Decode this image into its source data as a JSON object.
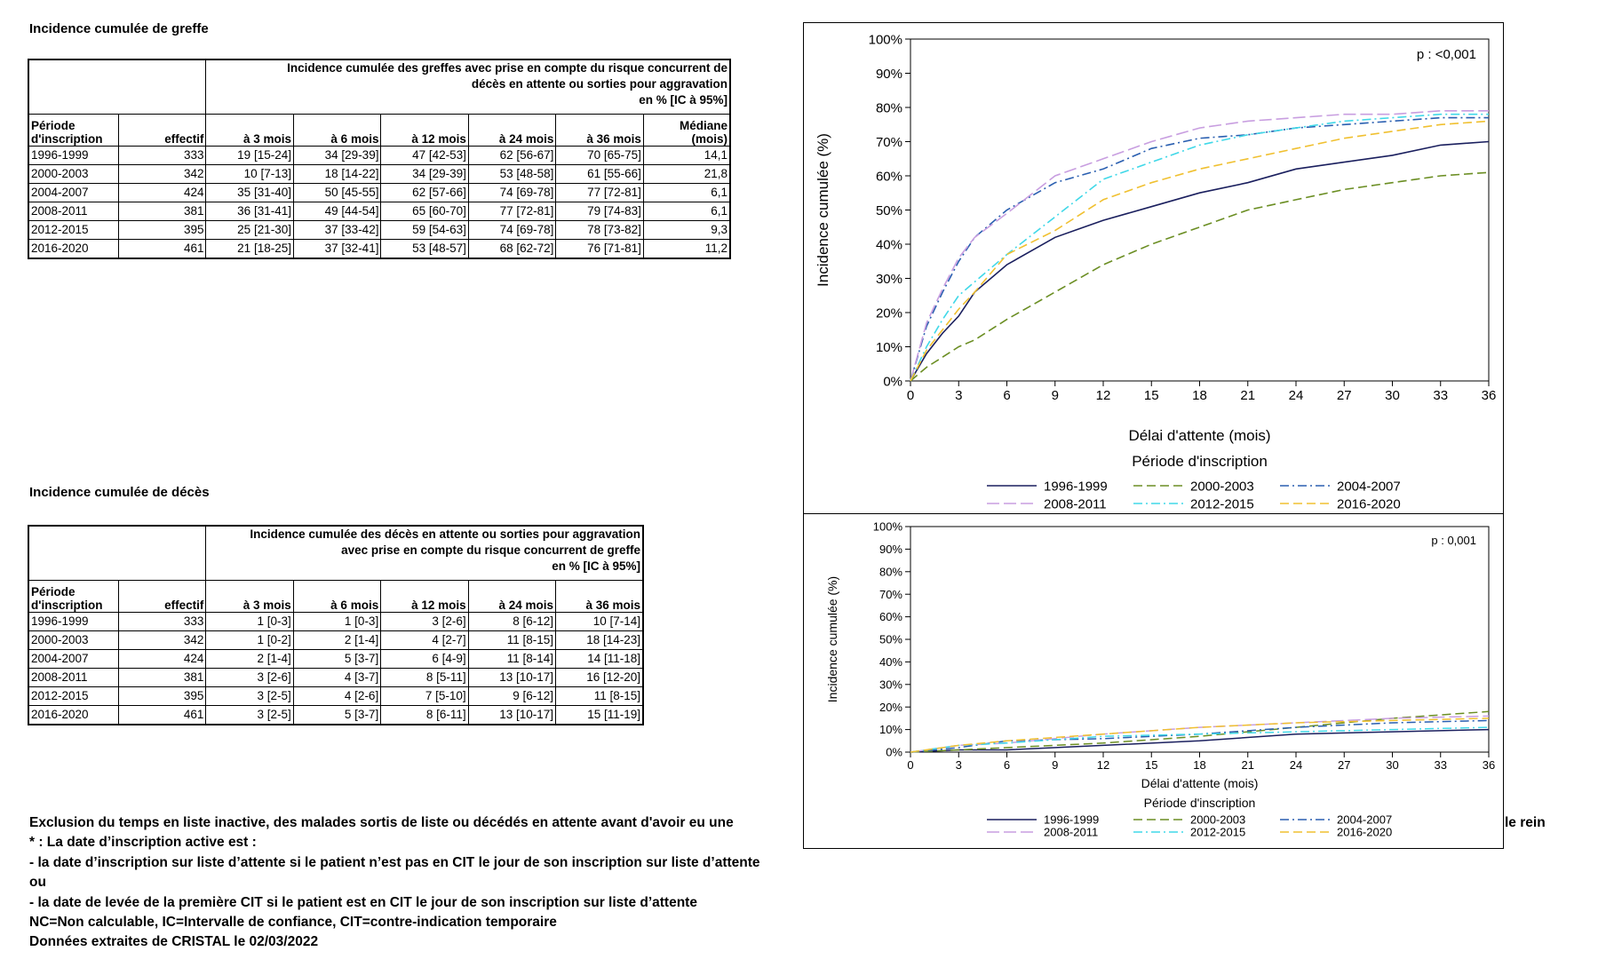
{
  "graft": {
    "heading": "Incidence cumulée de greffe",
    "caption_lines": [
      "Incidence cumulée des greffes avec prise en compte du risque concurrent de",
      "décès en attente ou sorties pour aggravation",
      "en % [IC à 95%]"
    ],
    "col_period": [
      "Période",
      "d'inscription"
    ],
    "col_n": "effectif",
    "col_times": [
      "à 3 mois",
      "à 6 mois",
      "à 12 mois",
      "à 24 mois",
      "à 36 mois"
    ],
    "col_median": [
      "Médiane",
      "(mois)"
    ],
    "rows": [
      {
        "period": "1996-1999",
        "n": "333",
        "vals": [
          "19 [15-24]",
          "34 [29-39]",
          "47 [42-53]",
          "62 [56-67]",
          "70 [65-75]"
        ],
        "median": "14,1"
      },
      {
        "period": "2000-2003",
        "n": "342",
        "vals": [
          "10 [7-13]",
          "18 [14-22]",
          "34 [29-39]",
          "53 [48-58]",
          "61 [55-66]"
        ],
        "median": "21,8"
      },
      {
        "period": "2004-2007",
        "n": "424",
        "vals": [
          "35 [31-40]",
          "50 [45-55]",
          "62 [57-66]",
          "74 [69-78]",
          "77 [72-81]"
        ],
        "median": "6,1"
      },
      {
        "period": "2008-2011",
        "n": "381",
        "vals": [
          "36 [31-41]",
          "49 [44-54]",
          "65 [60-70]",
          "77 [72-81]",
          "79 [74-83]"
        ],
        "median": "6,1"
      },
      {
        "period": "2012-2015",
        "n": "395",
        "vals": [
          "25 [21-30]",
          "37 [33-42]",
          "59 [54-63]",
          "74 [69-78]",
          "78 [73-82]"
        ],
        "median": "9,3"
      },
      {
        "period": "2016-2020",
        "n": "461",
        "vals": [
          "21 [18-25]",
          "37 [32-41]",
          "53 [48-57]",
          "68 [62-72]",
          "76 [71-81]"
        ],
        "median": "11,2"
      }
    ]
  },
  "death": {
    "heading": "Incidence cumulée de décès",
    "caption_lines": [
      "Incidence cumulée des décès en attente ou sorties pour aggravation",
      "avec prise en compte du risque concurrent de greffe",
      "en % [IC à 95%]"
    ],
    "col_period": [
      "Période",
      "d'inscription"
    ],
    "col_n": "effectif",
    "col_times": [
      "à 3 mois",
      "à 6 mois",
      "à 12 mois",
      "à 24 mois",
      "à 36 mois"
    ],
    "rows": [
      {
        "period": "1996-1999",
        "n": "333",
        "vals": [
          "1 [0-3]",
          "1 [0-3]",
          "3 [2-6]",
          "8 [6-12]",
          "10 [7-14]"
        ]
      },
      {
        "period": "2000-2003",
        "n": "342",
        "vals": [
          "1 [0-2]",
          "2 [1-4]",
          "4 [2-7]",
          "11 [8-15]",
          "18 [14-23]"
        ]
      },
      {
        "period": "2004-2007",
        "n": "424",
        "vals": [
          "2 [1-4]",
          "5 [3-7]",
          "6 [4-9]",
          "11 [8-14]",
          "14 [11-18]"
        ]
      },
      {
        "period": "2008-2011",
        "n": "381",
        "vals": [
          "3 [2-6]",
          "4 [3-7]",
          "8 [5-11]",
          "13 [10-17]",
          "16 [12-20]"
        ]
      },
      {
        "period": "2012-2015",
        "n": "395",
        "vals": [
          "3 [2-5]",
          "4 [2-6]",
          "7 [5-10]",
          "9 [6-12]",
          "11 [8-15]"
        ]
      },
      {
        "period": "2016-2020",
        "n": "461",
        "vals": [
          "3 [2-5]",
          "5 [3-7]",
          "8 [6-11]",
          "13 [10-17]",
          "15 [11-19]"
        ]
      }
    ]
  },
  "notes": {
    "line1": "Exclusion du temps en liste inactive, des malades sortis de liste ou décédés en attente avant d'avoir eu une",
    "line1_tail": "le rein",
    "line2": "* : La date d’inscription active est :",
    "line3": "- la date d’inscription sur liste d’attente si le patient n’est pas en CIT le jour de son inscription sur liste d’attente",
    "line4": "ou",
    "line5": "- la date de levée de la première CIT si le patient est en CIT le jour de son inscription sur liste d’attente",
    "line6": "NC=Non calculable, IC=Intervalle de confiance, CIT=contre-indication temporaire",
    "line7": "Données extraites de CRISTAL le 02/03/2022"
  },
  "chart_data": [
    {
      "type": "line",
      "pvalue": "p : <0,001",
      "xlabel": "Délai d'attente (mois)",
      "ylabel": "Incidence cumulée (%)",
      "legend_title": "Période d'inscription",
      "legend_position": "bottom",
      "xlim": [
        0,
        36
      ],
      "ylim": [
        0,
        100
      ],
      "xticks": [
        "0",
        "3",
        "6",
        "9",
        "12",
        "15",
        "18",
        "21",
        "24",
        "27",
        "30",
        "33",
        "36"
      ],
      "yticks": [
        "0%",
        "10%",
        "20%",
        "30%",
        "40%",
        "50%",
        "60%",
        "70%",
        "80%",
        "90%",
        "100%"
      ],
      "x": [
        0,
        1,
        2,
        3,
        4,
        6,
        9,
        12,
        15,
        18,
        21,
        24,
        27,
        30,
        33,
        36
      ],
      "series": [
        {
          "name": "1996-1999",
          "color": "#1a1f5e",
          "dash": "",
          "values": [
            0,
            8,
            14,
            19,
            26,
            34,
            42,
            47,
            51,
            55,
            58,
            62,
            64,
            66,
            69,
            70
          ]
        },
        {
          "name": "2000-2003",
          "color": "#6b8e23",
          "dash": "10,5",
          "values": [
            0,
            4,
            7,
            10,
            12,
            18,
            26,
            34,
            40,
            45,
            50,
            53,
            56,
            58,
            60,
            61
          ]
        },
        {
          "name": "2004-2007",
          "color": "#2a5fb0",
          "dash": "10,4,2,4",
          "values": [
            0,
            16,
            26,
            35,
            42,
            50,
            58,
            62,
            68,
            71,
            72,
            74,
            75,
            76,
            77,
            77
          ]
        },
        {
          "name": "2008-2011",
          "color": "#c89ee0",
          "dash": "14,5",
          "values": [
            0,
            17,
            27,
            36,
            42,
            49,
            60,
            65,
            70,
            74,
            76,
            77,
            78,
            78,
            79,
            79
          ]
        },
        {
          "name": "2012-2015",
          "color": "#40d8e8",
          "dash": "10,4,2,4",
          "values": [
            0,
            10,
            18,
            25,
            29,
            37,
            48,
            59,
            64,
            69,
            72,
            74,
            76,
            77,
            78,
            78
          ]
        },
        {
          "name": "2016-2020",
          "color": "#f0c030",
          "dash": "10,5",
          "values": [
            0,
            9,
            15,
            21,
            26,
            37,
            44,
            53,
            58,
            62,
            65,
            68,
            71,
            73,
            75,
            76
          ]
        }
      ]
    },
    {
      "type": "line",
      "pvalue": "p : 0,001",
      "xlabel": "Délai d'attente (mois)",
      "ylabel": "Incidence cumulée (%)",
      "legend_title": "Période d'inscription",
      "legend_position": "bottom",
      "xlim": [
        0,
        36
      ],
      "ylim": [
        0,
        100
      ],
      "xticks": [
        "0",
        "3",
        "6",
        "9",
        "12",
        "15",
        "18",
        "21",
        "24",
        "27",
        "30",
        "33",
        "36"
      ],
      "yticks": [
        "0%",
        "10%",
        "20%",
        "30%",
        "40%",
        "50%",
        "60%",
        "70%",
        "80%",
        "90%",
        "100%"
      ],
      "x": [
        0,
        3,
        6,
        12,
        18,
        24,
        30,
        36
      ],
      "series": [
        {
          "name": "1996-1999",
          "color": "#1a1f5e",
          "dash": "",
          "values": [
            0,
            1,
            1,
            3,
            5,
            8,
            9,
            10
          ]
        },
        {
          "name": "2000-2003",
          "color": "#6b8e23",
          "dash": "10,5",
          "values": [
            0,
            1,
            2,
            4,
            7,
            11,
            15,
            18
          ]
        },
        {
          "name": "2004-2007",
          "color": "#2a5fb0",
          "dash": "10,4,2,4",
          "values": [
            0,
            2,
            5,
            6,
            8,
            11,
            13,
            14
          ]
        },
        {
          "name": "2008-2011",
          "color": "#c89ee0",
          "dash": "14,5",
          "values": [
            0,
            3,
            4,
            8,
            11,
            13,
            15,
            16
          ]
        },
        {
          "name": "2012-2015",
          "color": "#40d8e8",
          "dash": "10,4,2,4",
          "values": [
            0,
            3,
            4,
            7,
            8,
            9,
            10,
            11
          ]
        },
        {
          "name": "2016-2020",
          "color": "#f0c030",
          "dash": "10,5",
          "values": [
            0,
            3,
            5,
            8,
            11,
            13,
            14,
            15
          ]
        }
      ]
    }
  ]
}
